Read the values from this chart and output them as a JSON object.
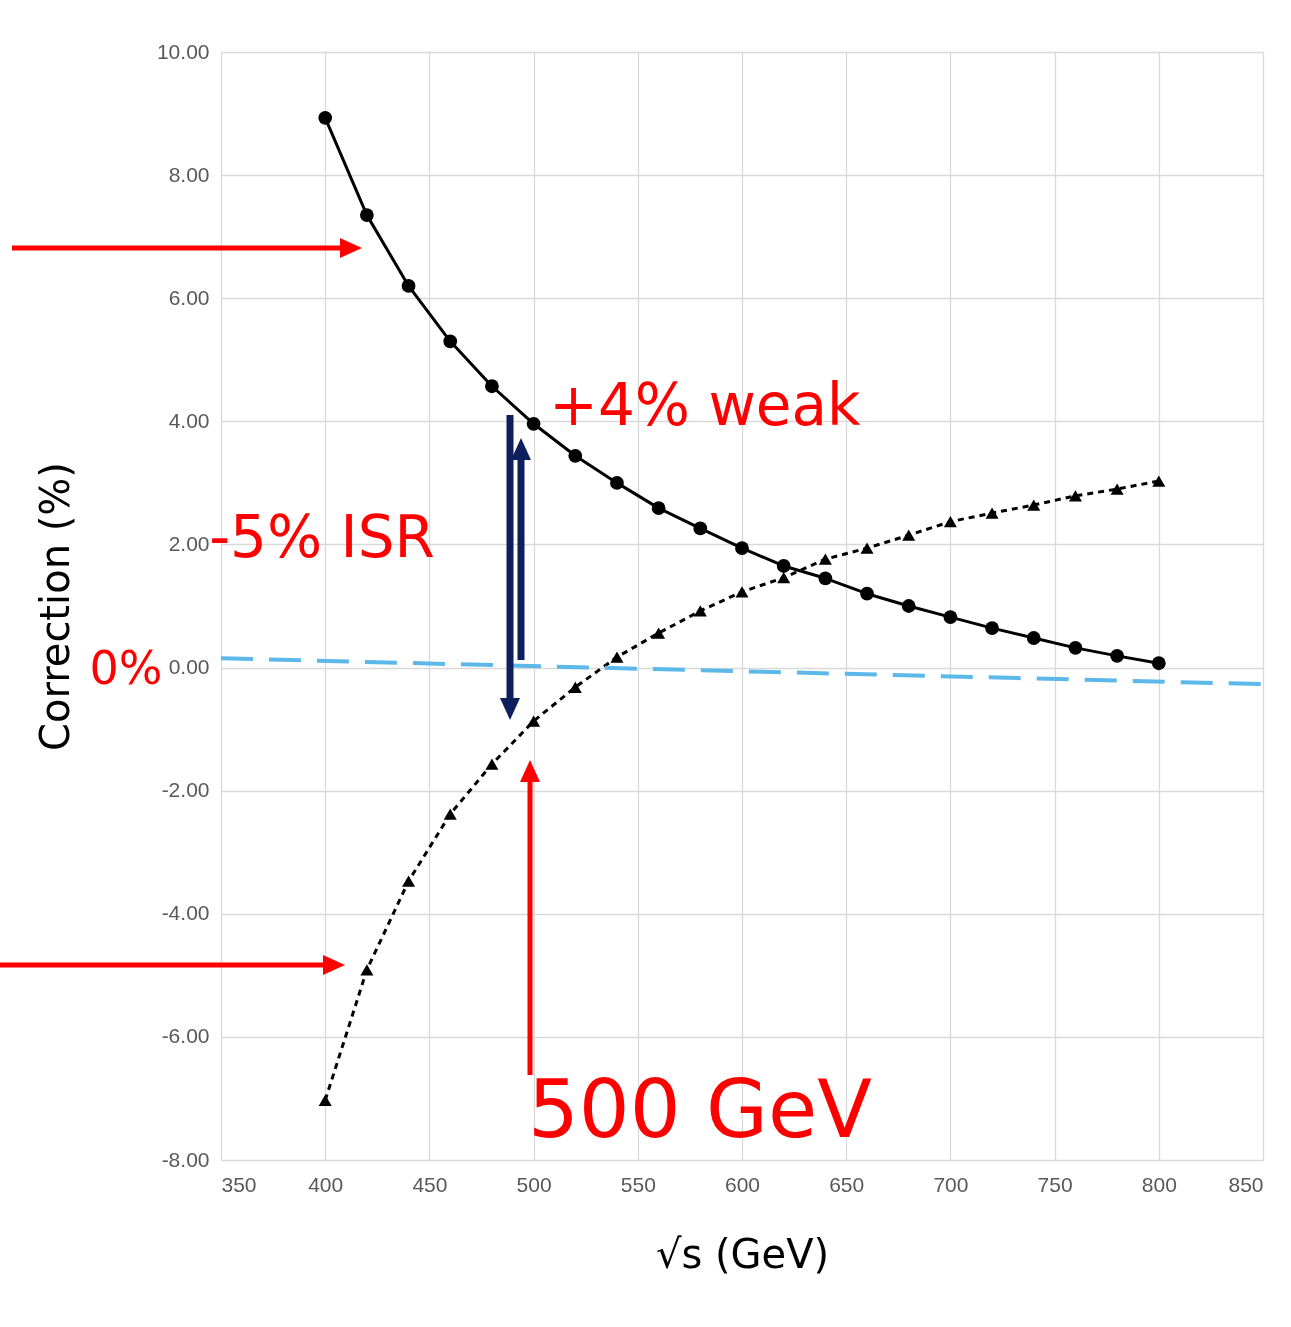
{
  "chart_data": {
    "type": "line",
    "xlabel": "√s (GeV)",
    "ylabel": "Correction (%)",
    "xlim": [
      350,
      850
    ],
    "xticks": [
      350,
      400,
      450,
      500,
      550,
      600,
      650,
      700,
      750,
      800,
      850
    ],
    "ylim": [
      -8,
      10
    ],
    "yticks": [
      {
        "value": -8,
        "label": "-8.00"
      },
      {
        "value": -6,
        "label": "-6.00"
      },
      {
        "value": -4,
        "label": "-4.00"
      },
      {
        "value": -2,
        "label": "-2.00"
      },
      {
        "value": 0,
        "label": "0.00"
      },
      {
        "value": 2,
        "label": "2.00"
      },
      {
        "value": 4,
        "label": "4.00"
      },
      {
        "value": 6,
        "label": "6.00"
      },
      {
        "value": 8,
        "label": "8.00"
      },
      {
        "value": 10,
        "label": "10.00"
      }
    ],
    "grid": true,
    "x": [
      400,
      420,
      440,
      460,
      480,
      500,
      520,
      540,
      560,
      580,
      600,
      620,
      640,
      660,
      680,
      700,
      720,
      740,
      760,
      780,
      800
    ],
    "series": [
      {
        "color": "#000000",
        "marker": "circle",
        "line_style": "solid",
        "values": [
          8.93,
          7.35,
          6.2,
          5.3,
          4.57,
          3.96,
          3.44,
          3.0,
          2.59,
          2.26,
          1.94,
          1.65,
          1.45,
          1.2,
          1.0,
          0.82,
          0.64,
          0.48,
          0.32,
          0.19,
          0.07
        ]
      },
      {
        "color": "#000000",
        "marker": "triangle",
        "line_style": "dashed",
        "values": [
          -7.03,
          -4.91,
          -3.47,
          -2.38,
          -1.57,
          -0.87,
          -0.32,
          0.17,
          0.56,
          0.92,
          1.23,
          1.46,
          1.76,
          1.94,
          2.15,
          2.37,
          2.51,
          2.64,
          2.79,
          2.9,
          3.03
        ]
      },
      {
        "color": "#5bb8e8",
        "marker": "none",
        "line_style": "dashed",
        "x": [
          350,
          850
        ],
        "values": [
          0.15,
          -0.27
        ]
      }
    ],
    "annotations": [
      "+4% weak",
      "-5% ISR",
      "0%",
      "500 GeV"
    ]
  }
}
